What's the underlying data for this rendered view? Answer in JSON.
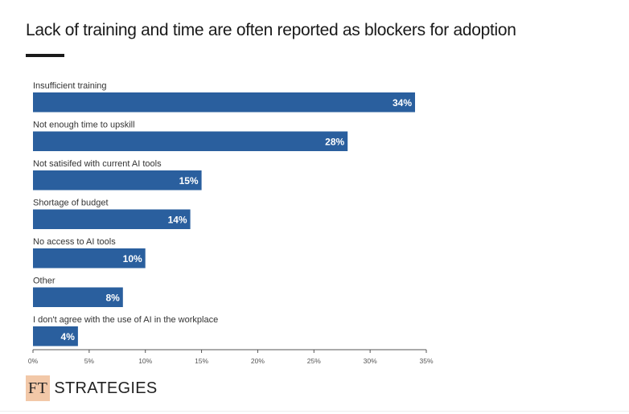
{
  "header": {
    "title": "Lack of training and time are often reported as blockers for adoption"
  },
  "chart_data": {
    "type": "bar",
    "orientation": "horizontal",
    "title": "Lack of training and time are often reported as blockers for adoption",
    "categories": [
      "Insufficient training",
      "Not enough time to upskill",
      "Not satisifed with current AI tools",
      "Shortage of budget",
      "No access to AI tools",
      "Other",
      "I don't agree with the use of AI in the workplace"
    ],
    "values": [
      34,
      28,
      15,
      14,
      10,
      8,
      4
    ],
    "value_labels": [
      "34%",
      "28%",
      "15%",
      "14%",
      "10%",
      "8%",
      "4%"
    ],
    "xlim": [
      0,
      35
    ],
    "xticks": [
      0,
      5,
      10,
      15,
      20,
      25,
      30,
      35
    ],
    "xtick_labels": [
      "0%",
      "5%",
      "10%",
      "15%",
      "20%",
      "25%",
      "30%",
      "35%"
    ],
    "xlabel": "",
    "ylabel": "",
    "bar_color": "#2a5f9e",
    "label_color": "#ffffff",
    "grid": false
  },
  "footer": {
    "logo_mark": "FT",
    "logo_name": "STRATEGIES",
    "logo_mark_color": "#f2c8a8"
  }
}
